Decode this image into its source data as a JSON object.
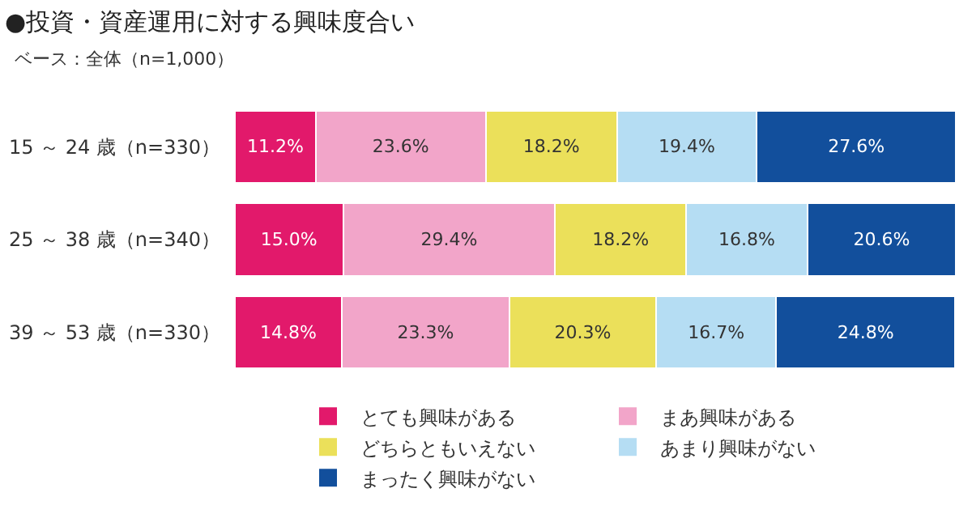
{
  "chart_data": {
    "type": "bar",
    "orientation": "horizontal",
    "stacked": true,
    "title": "●投資・資産運用に対する興味度合い",
    "subtitle": "ベース：全体（n=1,000）",
    "categories": [
      "15 ～ 24 歳（n=330）",
      "25 ～ 38 歳（n=340）",
      "39 ～ 53 歳（n=330）"
    ],
    "xlim": [
      0,
      100
    ],
    "tick_labels": "y",
    "legend": "bottom",
    "series": [
      {
        "name": "とても興味がある",
        "color": "#e2196b",
        "values": [
          11.2,
          15.0,
          14.8
        ],
        "value_labels": [
          "11.2%",
          "15.0%",
          "14.8%"
        ]
      },
      {
        "name": "まあ興味がある",
        "color": "#f2a5c9",
        "values": [
          23.6,
          29.4,
          23.3
        ],
        "value_labels": [
          "23.6%",
          "29.4%",
          "23.3%"
        ]
      },
      {
        "name": "どちらともいえない",
        "color": "#ebe05a",
        "values": [
          18.2,
          18.2,
          20.3
        ],
        "value_labels": [
          "18.2%",
          "18.2%",
          "20.3%"
        ]
      },
      {
        "name": "あまり興味がない",
        "color": "#b5ddf3",
        "values": [
          19.4,
          16.8,
          16.7
        ],
        "value_labels": [
          "19.4%",
          "16.8%",
          "16.7%"
        ]
      },
      {
        "name": "まったく興味がない",
        "color": "#124f9c",
        "values": [
          27.6,
          20.6,
          24.8
        ],
        "value_labels": [
          "27.6%",
          "20.6%",
          "24.8%"
        ]
      }
    ]
  }
}
